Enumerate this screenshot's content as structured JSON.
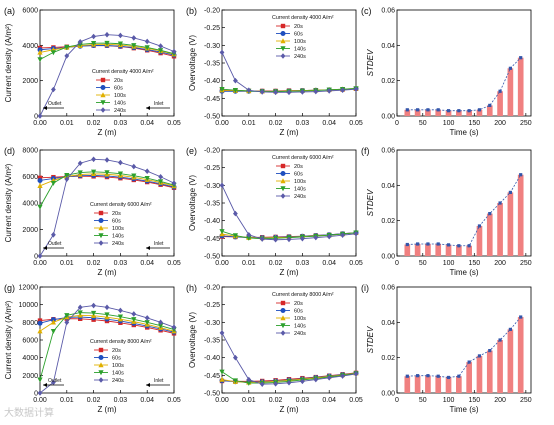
{
  "legend_labels": [
    "20s",
    "60s",
    "100s",
    "140s",
    "240s"
  ],
  "series_colors": [
    "#d62728",
    "#1f4fbf",
    "#e0b000",
    "#2ca02c",
    "#5a5aa8"
  ],
  "bar_color": "#f08080",
  "watermark": "大数据计算",
  "chart_data": [
    {
      "panel": "(a)",
      "type": "line",
      "xlabel": "Z (m)",
      "ylabel": "Current density (A/m²)",
      "xlim": [
        0.0,
        0.05
      ],
      "ylim": [
        0,
        6000
      ],
      "xticks": [
        "0.00",
        "0.01",
        "0.02",
        "0.03",
        "0.04",
        "0.05"
      ],
      "yticks": [
        "0",
        "2000",
        "4000",
        "6000"
      ],
      "legend_title": "Current density 4000 A/m²",
      "legend_position": "center-right",
      "annotations": [
        "Outlet",
        "Inlet"
      ],
      "x": [
        0.0,
        0.005,
        0.01,
        0.015,
        0.02,
        0.025,
        0.03,
        0.035,
        0.04,
        0.045,
        0.05
      ],
      "series": [
        {
          "name": "20s",
          "values": [
            3850,
            3880,
            3920,
            3970,
            3990,
            3980,
            3930,
            3840,
            3720,
            3560,
            3380
          ]
        },
        {
          "name": "60s",
          "values": [
            3750,
            3820,
            3880,
            3950,
            3990,
            3990,
            3950,
            3870,
            3760,
            3620,
            3450
          ]
        },
        {
          "name": "100s",
          "values": [
            3600,
            3750,
            3880,
            3980,
            4050,
            4060,
            4020,
            3940,
            3830,
            3680,
            3500
          ]
        },
        {
          "name": "140s",
          "values": [
            3200,
            3600,
            3900,
            4050,
            4120,
            4130,
            4090,
            4000,
            3880,
            3720,
            3530
          ]
        },
        {
          "name": "240s",
          "values": [
            0,
            1500,
            3400,
            4200,
            4500,
            4600,
            4560,
            4420,
            4220,
            3960,
            3650
          ]
        }
      ]
    },
    {
      "panel": "(b)",
      "type": "line",
      "xlabel": "Z (m)",
      "ylabel": "Overvoltage (V)",
      "xlim": [
        0.0,
        0.05
      ],
      "ylim": [
        -0.5,
        -0.2
      ],
      "xticks": [
        "0.00",
        "0.01",
        "0.02",
        "0.03",
        "0.04",
        "0.05"
      ],
      "yticks": [
        "-0.20",
        "-0.25",
        "-0.30",
        "-0.35",
        "-0.40",
        "-0.45",
        "-0.50"
      ],
      "legend_title": "Current density 4000 A/m²",
      "legend_position": "top-right",
      "x": [
        0.0,
        0.005,
        0.01,
        0.015,
        0.02,
        0.025,
        0.03,
        0.035,
        0.04,
        0.045,
        0.05
      ],
      "series": [
        {
          "name": "20s",
          "values": [
            -0.428,
            -0.428,
            -0.429,
            -0.429,
            -0.429,
            -0.428,
            -0.428,
            -0.427,
            -0.426,
            -0.425,
            -0.423
          ]
        },
        {
          "name": "60s",
          "values": [
            -0.43,
            -0.43,
            -0.43,
            -0.43,
            -0.43,
            -0.429,
            -0.428,
            -0.427,
            -0.426,
            -0.425,
            -0.423
          ]
        },
        {
          "name": "100s",
          "values": [
            -0.427,
            -0.428,
            -0.429,
            -0.43,
            -0.43,
            -0.429,
            -0.428,
            -0.427,
            -0.426,
            -0.424,
            -0.422
          ]
        },
        {
          "name": "140s",
          "values": [
            -0.424,
            -0.427,
            -0.429,
            -0.431,
            -0.431,
            -0.43,
            -0.429,
            -0.428,
            -0.426,
            -0.424,
            -0.422
          ]
        },
        {
          "name": "240s",
          "values": [
            -0.32,
            -0.4,
            -0.427,
            -0.432,
            -0.433,
            -0.433,
            -0.432,
            -0.431,
            -0.429,
            -0.427,
            -0.424
          ]
        }
      ]
    },
    {
      "panel": "(c)",
      "type": "bar",
      "xlabel": "Time (s)",
      "ylabel": "STDEV",
      "xlim": [
        0,
        260
      ],
      "ylim": [
        0,
        0.06
      ],
      "xticks": [
        "0",
        "50",
        "100",
        "150",
        "200",
        "250"
      ],
      "yticks": [
        "0.00",
        "0.02",
        "0.04",
        "0.06"
      ],
      "categories": [
        20,
        40,
        60,
        80,
        100,
        120,
        140,
        160,
        180,
        200,
        220,
        240
      ],
      "values": [
        0.0035,
        0.0035,
        0.0035,
        0.0035,
        0.003,
        0.003,
        0.003,
        0.0035,
        0.006,
        0.014,
        0.027,
        0.033
      ]
    },
    {
      "panel": "(d)",
      "type": "line",
      "xlabel": "Z (m)",
      "ylabel": "Current density (A/m²)",
      "xlim": [
        0.0,
        0.05
      ],
      "ylim": [
        0,
        8000
      ],
      "xticks": [
        "0.00",
        "0.01",
        "0.02",
        "0.03",
        "0.04",
        "0.05"
      ],
      "yticks": [
        "0",
        "2000",
        "4000",
        "6000",
        "8000"
      ],
      "legend_title": "Current density 6000 A/m²",
      "legend_position": "bottom-center",
      "annotations": [
        "Outlet",
        "Inlet"
      ],
      "x": [
        0.0,
        0.005,
        0.01,
        0.015,
        0.02,
        0.025,
        0.03,
        0.035,
        0.04,
        0.045,
        0.05
      ],
      "series": [
        {
          "name": "20s",
          "values": [
            5900,
            5950,
            6000,
            6020,
            6010,
            5960,
            5870,
            5740,
            5580,
            5380,
            5150
          ]
        },
        {
          "name": "60s",
          "values": [
            5700,
            5850,
            5980,
            6060,
            6080,
            6040,
            5950,
            5820,
            5650,
            5450,
            5200
          ]
        },
        {
          "name": "100s",
          "values": [
            5300,
            5700,
            6000,
            6150,
            6200,
            6170,
            6080,
            5940,
            5760,
            5540,
            5280
          ]
        },
        {
          "name": "140s",
          "values": [
            3700,
            5500,
            6100,
            6300,
            6350,
            6310,
            6210,
            6060,
            5870,
            5630,
            5350
          ]
        },
        {
          "name": "240s",
          "values": [
            0,
            1600,
            5800,
            7000,
            7300,
            7250,
            7050,
            6750,
            6400,
            5980,
            5500
          ]
        }
      ]
    },
    {
      "panel": "(e)",
      "type": "line",
      "xlabel": "Z (m)",
      "ylabel": "Overvoltage (V)",
      "xlim": [
        0.0,
        0.05
      ],
      "ylim": [
        -0.5,
        -0.2
      ],
      "xticks": [
        "0.00",
        "0.01",
        "0.02",
        "0.03",
        "0.04",
        "0.05"
      ],
      "yticks": [
        "-0.20",
        "-0.25",
        "-0.30",
        "-0.35",
        "-0.40",
        "-0.45",
        "-0.50"
      ],
      "legend_title": "Current density 6000 A/m²",
      "legend_position": "top-right",
      "x": [
        0.0,
        0.005,
        0.01,
        0.015,
        0.02,
        0.025,
        0.03,
        0.035,
        0.04,
        0.045,
        0.05
      ],
      "series": [
        {
          "name": "20s",
          "values": [
            -0.445,
            -0.446,
            -0.447,
            -0.447,
            -0.446,
            -0.445,
            -0.444,
            -0.442,
            -0.44,
            -0.437,
            -0.434
          ]
        },
        {
          "name": "60s",
          "values": [
            -0.443,
            -0.446,
            -0.448,
            -0.448,
            -0.447,
            -0.446,
            -0.444,
            -0.442,
            -0.44,
            -0.437,
            -0.434
          ]
        },
        {
          "name": "100s",
          "values": [
            -0.438,
            -0.444,
            -0.448,
            -0.449,
            -0.448,
            -0.447,
            -0.445,
            -0.443,
            -0.441,
            -0.438,
            -0.434
          ]
        },
        {
          "name": "140s",
          "values": [
            -0.43,
            -0.442,
            -0.449,
            -0.451,
            -0.45,
            -0.448,
            -0.446,
            -0.444,
            -0.441,
            -0.438,
            -0.434
          ]
        },
        {
          "name": "240s",
          "values": [
            -0.3,
            -0.38,
            -0.44,
            -0.452,
            -0.454,
            -0.453,
            -0.451,
            -0.448,
            -0.445,
            -0.441,
            -0.437
          ]
        }
      ]
    },
    {
      "panel": "(f)",
      "type": "bar",
      "xlabel": "Time (s)",
      "ylabel": "STDEV",
      "xlim": [
        0,
        260
      ],
      "ylim": [
        0,
        0.06
      ],
      "xticks": [
        "0",
        "50",
        "100",
        "150",
        "200",
        "250"
      ],
      "yticks": [
        "0.00",
        "0.02",
        "0.04",
        "0.06"
      ],
      "categories": [
        20,
        40,
        60,
        80,
        100,
        120,
        140,
        160,
        180,
        200,
        220,
        240
      ],
      "values": [
        0.0065,
        0.0068,
        0.0068,
        0.0068,
        0.0063,
        0.0058,
        0.0058,
        0.017,
        0.024,
        0.03,
        0.036,
        0.046
      ]
    },
    {
      "panel": "(g)",
      "type": "line",
      "xlabel": "Z (m)",
      "ylabel": "Current density (A/m²)",
      "xlim": [
        0.0,
        0.05
      ],
      "ylim": [
        0,
        12000
      ],
      "xticks": [
        "0.00",
        "0.01",
        "0.02",
        "0.03",
        "0.04",
        "0.05"
      ],
      "yticks": [
        "0",
        "2000",
        "4000",
        "6000",
        "8000",
        "10000",
        "12000"
      ],
      "legend_title": "Current density 8000 A/m²",
      "legend_position": "bottom-center",
      "annotations": [
        "Outlet",
        "Inlet"
      ],
      "x": [
        0.0,
        0.005,
        0.01,
        0.015,
        0.02,
        0.025,
        0.03,
        0.035,
        0.04,
        0.045,
        0.05
      ],
      "series": [
        {
          "name": "20s",
          "values": [
            8200,
            8350,
            8420,
            8400,
            8300,
            8150,
            7950,
            7700,
            7420,
            7100,
            6750
          ]
        },
        {
          "name": "60s",
          "values": [
            7900,
            8300,
            8550,
            8600,
            8520,
            8360,
            8150,
            7880,
            7580,
            7250,
            6880
          ]
        },
        {
          "name": "100s",
          "values": [
            7000,
            8000,
            8600,
            8800,
            8750,
            8580,
            8360,
            8080,
            7760,
            7400,
            7000
          ]
        },
        {
          "name": "140s",
          "values": [
            1500,
            7000,
            8800,
            9100,
            9050,
            8880,
            8640,
            8340,
            8000,
            7620,
            7180
          ]
        },
        {
          "name": "240s",
          "values": [
            0,
            1200,
            8000,
            9700,
            9900,
            9700,
            9350,
            8950,
            8500,
            8000,
            7450
          ]
        }
      ]
    },
    {
      "panel": "(h)",
      "type": "line",
      "xlabel": "Z (m)",
      "ylabel": "Overvoltage (V)",
      "xlim": [
        0.0,
        0.05
      ],
      "ylim": [
        -0.5,
        -0.2
      ],
      "xticks": [
        "0.00",
        "0.01",
        "0.02",
        "0.03",
        "0.04",
        "0.05"
      ],
      "yticks": [
        "-0.20",
        "-0.25",
        "-0.30",
        "-0.35",
        "-0.40",
        "-0.45",
        "-0.50"
      ],
      "legend_title": "Current density 8000 A/m²",
      "legend_position": "top-right",
      "x": [
        0.0,
        0.005,
        0.01,
        0.015,
        0.02,
        0.025,
        0.03,
        0.035,
        0.04,
        0.045,
        0.05
      ],
      "series": [
        {
          "name": "20s",
          "values": [
            -0.466,
            -0.467,
            -0.467,
            -0.466,
            -0.464,
            -0.461,
            -0.458,
            -0.455,
            -0.451,
            -0.447,
            -0.443
          ]
        },
        {
          "name": "60s",
          "values": [
            -0.465,
            -0.468,
            -0.469,
            -0.468,
            -0.466,
            -0.463,
            -0.46,
            -0.456,
            -0.452,
            -0.448,
            -0.444
          ]
        },
        {
          "name": "100s",
          "values": [
            -0.462,
            -0.468,
            -0.47,
            -0.469,
            -0.467,
            -0.464,
            -0.461,
            -0.457,
            -0.453,
            -0.449,
            -0.444
          ]
        },
        {
          "name": "140s",
          "values": [
            -0.44,
            -0.465,
            -0.472,
            -0.472,
            -0.47,
            -0.467,
            -0.463,
            -0.459,
            -0.455,
            -0.45,
            -0.445
          ]
        },
        {
          "name": "240s",
          "values": [
            -0.33,
            -0.4,
            -0.462,
            -0.475,
            -0.474,
            -0.471,
            -0.467,
            -0.462,
            -0.457,
            -0.452,
            -0.446
          ]
        }
      ]
    },
    {
      "panel": "(i)",
      "type": "bar",
      "xlabel": "Time (s)",
      "ylabel": "STDEV",
      "xlim": [
        0,
        260
      ],
      "ylim": [
        0,
        0.06
      ],
      "xticks": [
        "0",
        "50",
        "100",
        "150",
        "200",
        "250"
      ],
      "yticks": [
        "0.00",
        "0.02",
        "0.04",
        "0.06"
      ],
      "categories": [
        20,
        40,
        60,
        80,
        100,
        120,
        140,
        160,
        180,
        200,
        220,
        240
      ],
      "values": [
        0.0095,
        0.0098,
        0.0098,
        0.0095,
        0.0088,
        0.0095,
        0.0175,
        0.021,
        0.024,
        0.03,
        0.036,
        0.043
      ]
    }
  ]
}
